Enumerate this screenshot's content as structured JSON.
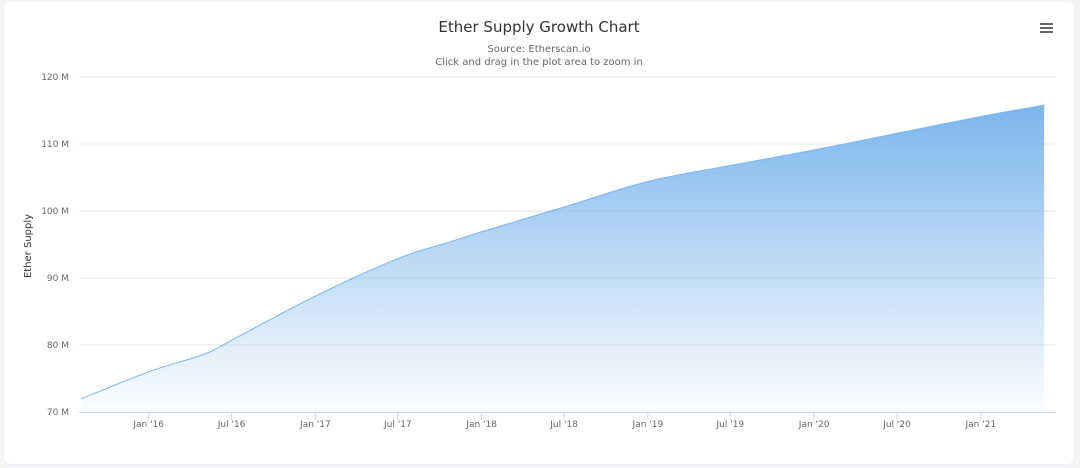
{
  "chart_data": {
    "type": "area",
    "title": "Ether Supply Growth Chart",
    "subtitle": "Source: Etherscan.io",
    "subtitle_hint": "Click and drag in the plot area to zoom in",
    "xlabel": "",
    "ylabel": "Ether Supply",
    "ylim": [
      70,
      120
    ],
    "yticks": [
      {
        "value": 70,
        "label": "70 M"
      },
      {
        "value": 80,
        "label": "80 M"
      },
      {
        "value": 90,
        "label": "90 M"
      },
      {
        "value": 100,
        "label": "100 M"
      },
      {
        "value": 110,
        "label": "110 M"
      },
      {
        "value": 120,
        "label": "120 M"
      }
    ],
    "xlim": [
      "2015-08-01",
      "2021-06-15"
    ],
    "xticks": [
      {
        "date": "2016-01-01",
        "label": "Jan '16"
      },
      {
        "date": "2016-07-01",
        "label": "Jul '16"
      },
      {
        "date": "2017-01-01",
        "label": "Jan '17"
      },
      {
        "date": "2017-07-01",
        "label": "Jul '17"
      },
      {
        "date": "2018-01-01",
        "label": "Jan '18"
      },
      {
        "date": "2018-07-01",
        "label": "Jul '18"
      },
      {
        "date": "2019-01-01",
        "label": "Jan '19"
      },
      {
        "date": "2019-07-01",
        "label": "Jul '19"
      },
      {
        "date": "2020-01-01",
        "label": "Jan '20"
      },
      {
        "date": "2020-07-01",
        "label": "Jul '20"
      },
      {
        "date": "2021-01-01",
        "label": "Jan '21"
      }
    ],
    "grid": true,
    "legend": "none",
    "series": [
      {
        "color": "#7cb5ec",
        "points": [
          {
            "x": "2015-08-07",
            "y": 72.0
          },
          {
            "x": "2016-01-01",
            "y": 76.0
          },
          {
            "x": "2016-05-01",
            "y": 78.6
          },
          {
            "x": "2016-07-01",
            "y": 80.7
          },
          {
            "x": "2017-01-01",
            "y": 87.3
          },
          {
            "x": "2017-07-01",
            "y": 92.9
          },
          {
            "x": "2017-10-15",
            "y": 95.2
          },
          {
            "x": "2018-01-01",
            "y": 96.9
          },
          {
            "x": "2018-07-01",
            "y": 100.6
          },
          {
            "x": "2019-01-01",
            "y": 104.4
          },
          {
            "x": "2019-07-01",
            "y": 106.8
          },
          {
            "x": "2020-01-01",
            "y": 109.1
          },
          {
            "x": "2020-07-01",
            "y": 111.6
          },
          {
            "x": "2021-01-01",
            "y": 114.1
          },
          {
            "x": "2021-05-20",
            "y": 115.8
          }
        ]
      }
    ]
  }
}
